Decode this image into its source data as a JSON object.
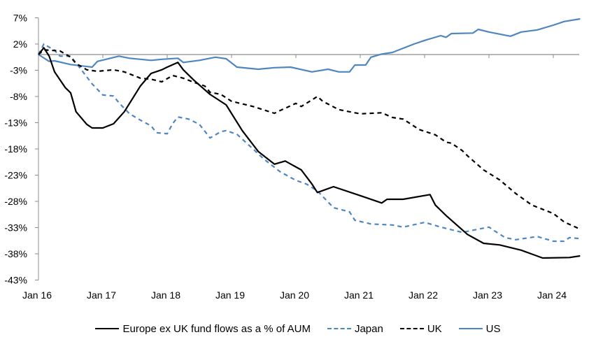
{
  "chart_data": {
    "type": "line",
    "title": "",
    "xlabel": "",
    "ylabel": "",
    "ylim": [
      -43,
      7
    ],
    "y_ticks": [
      "7%",
      "2%",
      "-3%",
      "-8%",
      "-13%",
      "-18%",
      "-23%",
      "-28%",
      "-33%",
      "-38%",
      "-43%"
    ],
    "y_tick_values": [
      7,
      2,
      -3,
      -8,
      -13,
      -18,
      -23,
      -28,
      -33,
      -38,
      -43
    ],
    "x_ticks": [
      "Jan 16",
      "Jan 17",
      "Jan 18",
      "Jan 19",
      "Jan 20",
      "Jan 21",
      "Jan 22",
      "Jan 23",
      "Jan 24"
    ],
    "x_tick_values": [
      "2016-01",
      "2017-01",
      "2018-01",
      "2019-01",
      "2020-01",
      "2021-01",
      "2022-01",
      "2023-01",
      "2024-01"
    ],
    "xlim": [
      "2016-01",
      "2024-06"
    ],
    "grid": false,
    "zero_line": true,
    "legend_position": "bottom",
    "series": [
      {
        "name": "Europe ex UK fund flows as a % of AUM",
        "color": "#000000",
        "style": "solid",
        "x": [
          "2016-01",
          "2016-02",
          "2016-03",
          "2016-04",
          "2016-06",
          "2016-07",
          "2016-08",
          "2016-10",
          "2016-11",
          "2017-01",
          "2017-03",
          "2017-05",
          "2017-08",
          "2017-10",
          "2017-12",
          "2018-01",
          "2018-03",
          "2018-04",
          "2018-06",
          "2018-09",
          "2018-12",
          "2019-03",
          "2019-06",
          "2019-09",
          "2019-11",
          "2020-02",
          "2020-04",
          "2020-05",
          "2020-08",
          "2021-01",
          "2021-05",
          "2021-06",
          "2021-09",
          "2022-02",
          "2022-03",
          "2022-05",
          "2022-09",
          "2022-12",
          "2023-03",
          "2023-07",
          "2023-11",
          "2024-04",
          "2024-06"
        ],
        "values": [
          0.0,
          1.3,
          -0.3,
          -3.3,
          -6.3,
          -7.3,
          -10.9,
          -13.3,
          -14.0,
          -14.0,
          -13.2,
          -10.9,
          -6.0,
          -3.6,
          -2.9,
          -2.4,
          -1.5,
          -2.9,
          -4.9,
          -7.6,
          -9.6,
          -14.5,
          -18.5,
          -20.9,
          -20.3,
          -22.0,
          -24.7,
          -26.3,
          -25.2,
          -26.9,
          -28.3,
          -27.6,
          -27.6,
          -26.7,
          -28.7,
          -30.7,
          -34.3,
          -36.0,
          -36.3,
          -37.3,
          -38.8,
          -38.7,
          -38.4
        ]
      },
      {
        "name": "Japan",
        "color": "#4f86c0",
        "style": "dashed",
        "x": [
          "2016-01",
          "2016-02",
          "2016-04",
          "2016-05",
          "2016-07",
          "2016-09",
          "2016-11",
          "2017-01",
          "2017-03",
          "2017-04",
          "2017-06",
          "2017-08",
          "2017-10",
          "2017-11",
          "2018-01",
          "2018-02",
          "2018-03",
          "2018-05",
          "2018-07",
          "2018-09",
          "2018-11",
          "2018-12",
          "2019-02",
          "2019-05",
          "2019-07",
          "2019-10",
          "2020-01",
          "2020-03",
          "2020-05",
          "2020-08",
          "2020-11",
          "2020-12",
          "2021-03",
          "2021-07",
          "2021-09",
          "2022-01",
          "2022-04",
          "2022-08",
          "2023-01",
          "2023-02",
          "2023-04",
          "2023-06",
          "2023-10",
          "2024-01",
          "2024-03",
          "2024-04",
          "2024-06"
        ],
        "values": [
          0.0,
          2.0,
          0.8,
          -0.3,
          -0.3,
          -2.9,
          -5.6,
          -7.7,
          -7.9,
          -9.2,
          -11.3,
          -12.5,
          -13.6,
          -14.9,
          -15.1,
          -13.2,
          -11.9,
          -12.3,
          -13.3,
          -15.9,
          -14.7,
          -14.5,
          -15.2,
          -18.0,
          -19.9,
          -22.3,
          -24.0,
          -24.7,
          -26.0,
          -29.2,
          -30.0,
          -31.6,
          -32.3,
          -32.5,
          -32.9,
          -32.0,
          -32.9,
          -33.9,
          -32.9,
          -33.6,
          -34.9,
          -35.3,
          -34.7,
          -35.6,
          -35.6,
          -34.9,
          -35.1
        ]
      },
      {
        "name": "UK",
        "color": "#000000",
        "style": "dashed",
        "x": [
          "2016-01",
          "2016-02",
          "2016-05",
          "2016-07",
          "2016-08",
          "2016-10",
          "2016-12",
          "2017-03",
          "2017-05",
          "2017-08",
          "2017-10",
          "2017-12",
          "2018-02",
          "2018-04",
          "2018-06",
          "2018-08",
          "2018-09",
          "2018-11",
          "2019-01",
          "2019-05",
          "2019-09",
          "2019-10",
          "2020-01",
          "2020-02",
          "2020-05",
          "2020-06",
          "2020-09",
          "2021-01",
          "2021-05",
          "2021-07",
          "2021-09",
          "2021-12",
          "2022-03",
          "2022-05",
          "2022-06",
          "2022-08",
          "2022-09",
          "2022-12",
          "2023-03",
          "2023-06",
          "2023-09",
          "2024-01",
          "2024-03",
          "2024-06"
        ],
        "values": [
          0.0,
          0.9,
          0.7,
          -0.5,
          -1.7,
          -2.9,
          -3.2,
          -2.9,
          -3.3,
          -4.5,
          -4.7,
          -5.2,
          -4.0,
          -4.5,
          -5.3,
          -6.0,
          -7.2,
          -7.6,
          -8.9,
          -9.9,
          -11.2,
          -10.7,
          -9.3,
          -9.9,
          -8.0,
          -8.9,
          -10.5,
          -11.3,
          -11.1,
          -12.0,
          -12.3,
          -14.3,
          -15.3,
          -16.7,
          -16.9,
          -18.3,
          -19.3,
          -22.0,
          -23.9,
          -26.5,
          -28.7,
          -30.3,
          -31.9,
          -33.3
        ]
      },
      {
        "name": "US",
        "color": "#4f86c0",
        "style": "solid",
        "x": [
          "2016-01",
          "2016-03",
          "2016-04",
          "2016-07",
          "2016-11",
          "2016-12",
          "2017-04",
          "2017-06",
          "2017-10",
          "2017-12",
          "2018-03",
          "2018-04",
          "2018-07",
          "2018-10",
          "2018-12",
          "2019-02",
          "2019-06",
          "2019-09",
          "2019-12",
          "2020-04",
          "2020-07",
          "2020-09",
          "2020-11",
          "2020-12",
          "2021-02",
          "2021-03",
          "2021-05",
          "2021-07",
          "2021-09",
          "2021-11",
          "2022-01",
          "2022-04",
          "2022-05",
          "2022-06",
          "2022-10",
          "2022-11",
          "2023-01",
          "2023-05",
          "2023-07",
          "2023-10",
          "2024-01",
          "2024-03",
          "2024-06"
        ],
        "values": [
          0.0,
          -1.3,
          -1.2,
          -1.9,
          -2.4,
          -1.3,
          -0.3,
          -0.7,
          -1.1,
          -0.9,
          -0.7,
          -1.5,
          -1.1,
          -0.5,
          -0.8,
          -2.4,
          -2.8,
          -2.5,
          -2.4,
          -3.3,
          -2.8,
          -3.3,
          -3.3,
          -2.0,
          -2.0,
          -0.5,
          0.1,
          0.4,
          1.2,
          2.0,
          2.7,
          3.6,
          3.3,
          4.0,
          4.1,
          4.8,
          4.3,
          3.5,
          4.3,
          4.7,
          5.6,
          6.3,
          6.8
        ]
      }
    ]
  }
}
